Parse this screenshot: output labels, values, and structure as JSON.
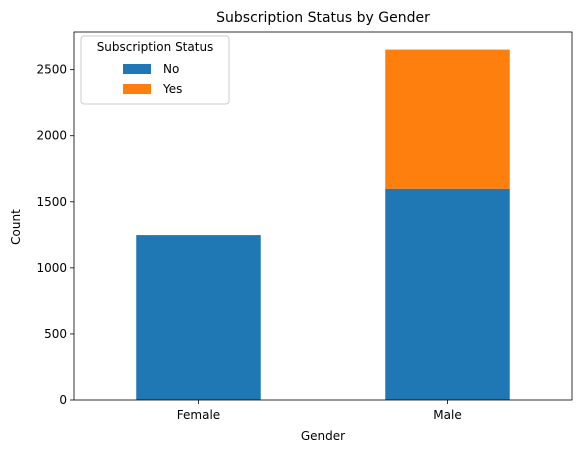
{
  "chart_data": {
    "type": "bar",
    "stacked": true,
    "title": "Subscription Status by Gender",
    "xlabel": "Gender",
    "ylabel": "Count",
    "categories": [
      "Female",
      "Male"
    ],
    "series": [
      {
        "name": "No",
        "values": [
          1248,
          1599
        ],
        "color": "#1f77b4"
      },
      {
        "name": "Yes",
        "values": [
          0,
          1053
        ],
        "color": "#ff7f0e"
      }
    ],
    "ylim": [
      0,
      2785
    ],
    "yticks": [
      0,
      500,
      1000,
      1500,
      2000,
      2500
    ],
    "legend": {
      "title": "Subscription Status",
      "placement": "top-left"
    },
    "grid": false
  }
}
